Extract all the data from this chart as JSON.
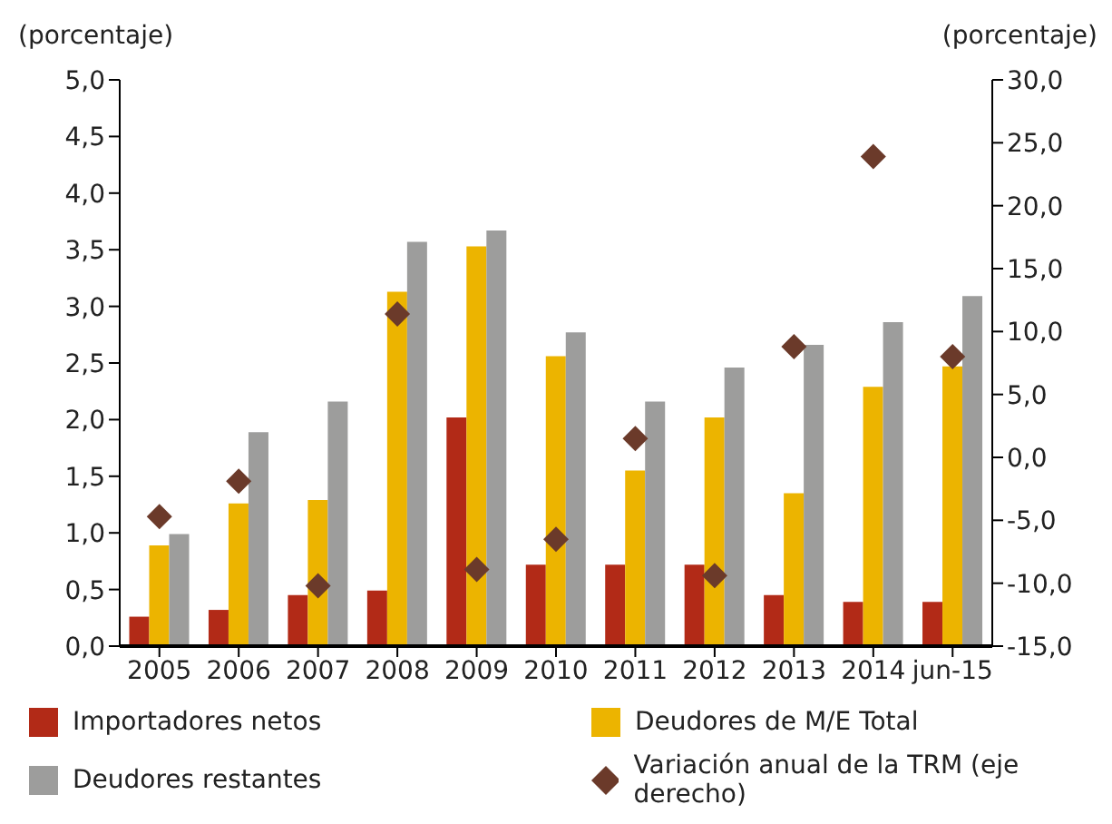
{
  "chart_data": {
    "type": "bar",
    "ylabel": "(porcentaje)",
    "y2label": "(porcentaje)",
    "categories": [
      "2005",
      "2006",
      "2007",
      "2008",
      "2009",
      "2010",
      "2011",
      "2012",
      "2013",
      "2014",
      "jun-15"
    ],
    "series": [
      {
        "name": "Importadores netos",
        "color": "#b22a17",
        "values": [
          0.26,
          0.32,
          0.45,
          0.49,
          2.02,
          0.72,
          0.72,
          0.72,
          0.45,
          0.39,
          0.39
        ]
      },
      {
        "name": "Deudores de M/E Total",
        "color": "#ecb400",
        "values": [
          0.89,
          1.26,
          1.29,
          3.13,
          3.53,
          2.56,
          1.55,
          2.02,
          1.35,
          2.29,
          2.47
        ]
      },
      {
        "name": "Deudores restantes",
        "color": "#9d9d9c",
        "values": [
          0.99,
          1.89,
          2.16,
          3.57,
          3.67,
          2.77,
          2.16,
          2.46,
          2.66,
          2.86,
          3.09
        ]
      },
      {
        "name": "Variación anual de la TRM (eje derecho)",
        "type": "scatter",
        "axis": "y2",
        "marker": "diamond",
        "color": "#6b3a2a",
        "values": [
          -4.7,
          -1.9,
          -10.2,
          11.4,
          -8.9,
          -6.5,
          1.5,
          -9.4,
          8.8,
          23.9,
          8.0
        ]
      }
    ],
    "ylim": [
      0,
      5
    ],
    "yticks": [
      {
        "value": 0,
        "label": "0,0"
      },
      {
        "value": 0.5,
        "label": "0,5"
      },
      {
        "value": 1,
        "label": "1,0"
      },
      {
        "value": 1.5,
        "label": "1,5"
      },
      {
        "value": 2,
        "label": "2,0"
      },
      {
        "value": 2.5,
        "label": "2,5"
      },
      {
        "value": 3,
        "label": "3,0"
      },
      {
        "value": 3.5,
        "label": "3,5"
      },
      {
        "value": 4,
        "label": "4,0"
      },
      {
        "value": 4.5,
        "label": "4,5"
      },
      {
        "value": 5,
        "label": "5,0"
      }
    ],
    "y2lim": [
      -15,
      30
    ],
    "y2ticks": [
      {
        "value": -15,
        "label": "-15,0"
      },
      {
        "value": -10,
        "label": "-10,0"
      },
      {
        "value": -5,
        "label": "-5,0"
      },
      {
        "value": 0,
        "label": "0,0"
      },
      {
        "value": 5,
        "label": "5,0"
      },
      {
        "value": 10,
        "label": "10,0"
      },
      {
        "value": 15,
        "label": "15,0"
      },
      {
        "value": 20,
        "label": "20,0"
      },
      {
        "value": 25,
        "label": "25,0"
      },
      {
        "value": 30,
        "label": "30,0"
      }
    ],
    "grid": false,
    "legend": "bottom"
  }
}
